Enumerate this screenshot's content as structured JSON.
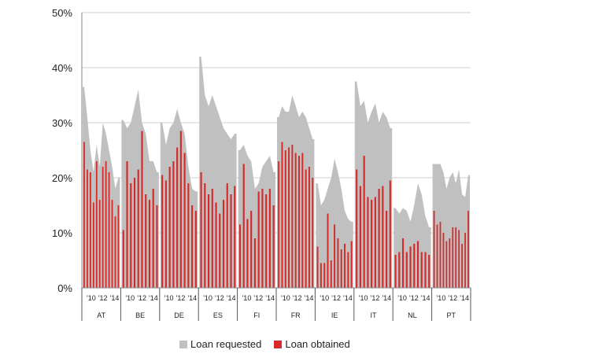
{
  "chart_data": {
    "type": "area",
    "title": "",
    "ylabel": "",
    "ylim": [
      0,
      50
    ],
    "y_ticks": [
      "0%",
      "10%",
      "20%",
      "30%",
      "40%",
      "50%"
    ],
    "year_ticks": [
      "'10",
      "'12",
      "'14"
    ],
    "grid": true,
    "legend_position": "bottom",
    "colors": {
      "requested": "#c0c0c0",
      "obtained": "#d42a2a"
    },
    "series": [
      {
        "name": "Loan requested",
        "kind": "area"
      },
      {
        "name": "Loan obtained",
        "kind": "bar"
      }
    ],
    "groups": [
      {
        "country": "AT",
        "requested": [
          36.5,
          31,
          25,
          21,
          26,
          22,
          30,
          28,
          25,
          22,
          18,
          20
        ],
        "obtained": [
          26.5,
          21.5,
          21,
          15.5,
          23,
          16,
          22,
          23,
          21,
          16,
          13,
          15
        ]
      },
      {
        "country": "BE",
        "requested": [
          30.5,
          29,
          30,
          33,
          36,
          30,
          28,
          23,
          23,
          21
        ],
        "obtained": [
          10.5,
          23,
          19,
          20,
          21.5,
          28.5,
          17,
          16,
          18,
          15
        ]
      },
      {
        "country": "DE",
        "requested": [
          30,
          26,
          29,
          30,
          32.5,
          30,
          28,
          22,
          18,
          17.5
        ],
        "obtained": [
          20.5,
          19.5,
          22,
          23,
          25.5,
          28.5,
          24.5,
          19,
          15,
          14
        ]
      },
      {
        "country": "ES",
        "requested": [
          42,
          35,
          33,
          35,
          33,
          31,
          29,
          28,
          27,
          28
        ],
        "obtained": [
          21,
          19,
          17,
          18,
          15.5,
          13.5,
          16,
          19,
          17,
          18.5
        ]
      },
      {
        "country": "FI",
        "requested": [
          25,
          26,
          24,
          23,
          18,
          19,
          22,
          23,
          24,
          21
        ],
        "obtained": [
          11.5,
          22.5,
          12.5,
          14,
          9,
          17.5,
          18,
          17,
          18,
          15
        ]
      },
      {
        "country": "FR",
        "requested": [
          31,
          33,
          32,
          32,
          35,
          33,
          31,
          32,
          31,
          29,
          27
        ],
        "obtained": [
          23,
          26.5,
          25,
          25.5,
          26,
          24.5,
          24,
          24.5,
          21.5,
          22,
          20
        ]
      },
      {
        "country": "IE",
        "requested": [
          19,
          15,
          16,
          18,
          20,
          23.5,
          21,
          18,
          14,
          12.5,
          12
        ],
        "obtained": [
          7.5,
          4.5,
          4.5,
          13.5,
          5,
          11.5,
          9,
          7,
          8,
          6.5,
          8.5
        ]
      },
      {
        "country": "IT",
        "requested": [
          37.5,
          33,
          34,
          30,
          32,
          33.5,
          30,
          32,
          31,
          29
        ],
        "obtained": [
          21.5,
          18.5,
          24,
          16.5,
          16,
          16.5,
          18,
          18.5,
          14,
          19.5
        ]
      },
      {
        "country": "NL",
        "requested": [
          14.5,
          13.5,
          14.5,
          14,
          12,
          15,
          19,
          17,
          13,
          11
        ],
        "obtained": [
          6,
          6.5,
          9,
          6.5,
          7.5,
          8,
          8.5,
          6.5,
          6.5,
          6
        ]
      },
      {
        "country": "PT",
        "requested": [
          22.5,
          22.5,
          22.5,
          21,
          18,
          20,
          21,
          19,
          21.5,
          17,
          16.5,
          20.5
        ],
        "obtained": [
          14,
          11.5,
          12,
          10,
          8.5,
          9,
          11,
          11,
          10.5,
          8,
          10,
          14
        ]
      }
    ]
  }
}
